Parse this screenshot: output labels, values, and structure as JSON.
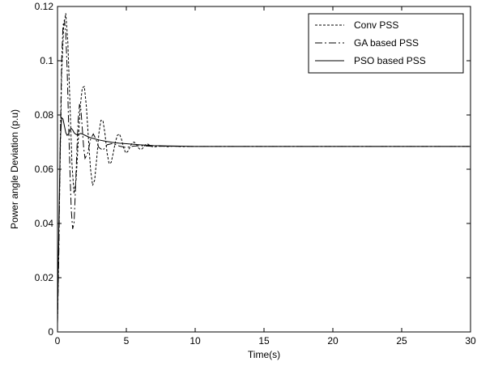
{
  "chart_data": {
    "type": "line",
    "title": "",
    "xlabel": "Time(s)",
    "ylabel": "Power angle Deviation (p.u)",
    "xlim": [
      0,
      30
    ],
    "ylim": [
      0,
      0.12
    ],
    "xticks": [
      0,
      5,
      10,
      15,
      20,
      25,
      30
    ],
    "xtick_labels": [
      "0",
      "5",
      "10",
      "15",
      "20",
      "25",
      "30"
    ],
    "yticks": [
      0,
      0.02,
      0.04,
      0.06,
      0.08,
      0.1,
      0.12
    ],
    "ytick_labels": [
      "0",
      "0.02",
      "0.04",
      "0.06",
      "0.08",
      "0.1",
      "0.12"
    ],
    "grid": false,
    "legend_position": "top-right",
    "series": [
      {
        "name": "Conv PSS",
        "line_style": "dotted",
        "color": "#000000",
        "x": [
          0,
          0.15,
          0.3,
          0.45,
          0.6,
          0.75,
          0.9,
          1.05,
          1.2,
          1.35,
          1.5,
          1.65,
          1.8,
          1.95,
          2.1,
          2.25,
          2.4,
          2.55,
          2.7,
          2.85,
          3.0,
          3.15,
          3.3,
          3.45,
          3.6,
          3.75,
          3.9,
          4.05,
          4.2,
          4.35,
          4.5,
          4.65,
          4.8,
          4.95,
          5.1,
          5.25,
          5.4,
          5.55,
          5.7,
          5.85,
          6.0,
          6.15,
          6.3,
          6.45,
          6.6,
          6.75,
          7.0,
          7.5,
          8.0,
          8.5,
          9.0,
          9.5,
          10,
          12,
          15,
          20,
          25,
          30
        ],
        "y": [
          0.004,
          0.05,
          0.095,
          0.113,
          0.1175,
          0.107,
          0.085,
          0.062,
          0.051,
          0.056,
          0.07,
          0.083,
          0.09,
          0.0905,
          0.083,
          0.071,
          0.06,
          0.054,
          0.056,
          0.064,
          0.073,
          0.078,
          0.078,
          0.073,
          0.066,
          0.062,
          0.0625,
          0.066,
          0.07,
          0.0725,
          0.073,
          0.071,
          0.068,
          0.066,
          0.0665,
          0.068,
          0.0695,
          0.07,
          0.0695,
          0.068,
          0.0673,
          0.0675,
          0.0685,
          0.0693,
          0.0692,
          0.0685,
          0.0682,
          0.0686,
          0.0683,
          0.0685,
          0.0683,
          0.0684,
          0.0684,
          0.0684,
          0.0684,
          0.0684,
          0.0684,
          0.0684
        ]
      },
      {
        "name": "GA based PSS",
        "line_style": "dashdot",
        "color": "#000000",
        "x": [
          0,
          0.1,
          0.2,
          0.3,
          0.4,
          0.5,
          0.6,
          0.7,
          0.8,
          0.9,
          1.0,
          1.1,
          1.2,
          1.3,
          1.4,
          1.5,
          1.6,
          1.7,
          1.8,
          1.9,
          2.0,
          2.2,
          2.4,
          2.6,
          2.8,
          3.0,
          3.3,
          3.6,
          4.0,
          4.5,
          5.0,
          5.5,
          6.0,
          7.0,
          8.0,
          9.0,
          10,
          15,
          20,
          25,
          30
        ],
        "y": [
          0.003,
          0.03,
          0.07,
          0.1,
          0.113,
          0.115,
          0.11,
          0.097,
          0.078,
          0.06,
          0.045,
          0.038,
          0.04,
          0.052,
          0.066,
          0.078,
          0.084,
          0.082,
          0.075,
          0.068,
          0.064,
          0.066,
          0.071,
          0.073,
          0.071,
          0.068,
          0.067,
          0.069,
          0.0695,
          0.0685,
          0.068,
          0.0685,
          0.0687,
          0.0684,
          0.0685,
          0.0684,
          0.0684,
          0.0684,
          0.0684,
          0.0684,
          0.0684
        ]
      },
      {
        "name": "PSO based PSS",
        "line_style": "solid",
        "color": "#000000",
        "x": [
          0,
          0.1,
          0.2,
          0.3,
          0.4,
          0.5,
          0.6,
          0.7,
          0.8,
          0.9,
          1.0,
          1.1,
          1.2,
          1.3,
          1.4,
          1.5,
          1.7,
          2.0,
          2.3,
          2.7,
          3.0,
          3.5,
          4.0,
          4.5,
          5.0,
          6.0,
          7.0,
          8.0,
          9.0,
          10,
          12,
          15,
          20,
          25,
          30
        ],
        "y": [
          0.003,
          0.04,
          0.07,
          0.079,
          0.0785,
          0.076,
          0.0735,
          0.0725,
          0.073,
          0.0745,
          0.075,
          0.0745,
          0.0735,
          0.073,
          0.0727,
          0.0728,
          0.0732,
          0.0725,
          0.0718,
          0.0712,
          0.0708,
          0.0703,
          0.0699,
          0.0696,
          0.0694,
          0.069,
          0.0687,
          0.0686,
          0.0685,
          0.0684,
          0.0684,
          0.0684,
          0.0684,
          0.0684,
          0.0684
        ]
      }
    ]
  }
}
